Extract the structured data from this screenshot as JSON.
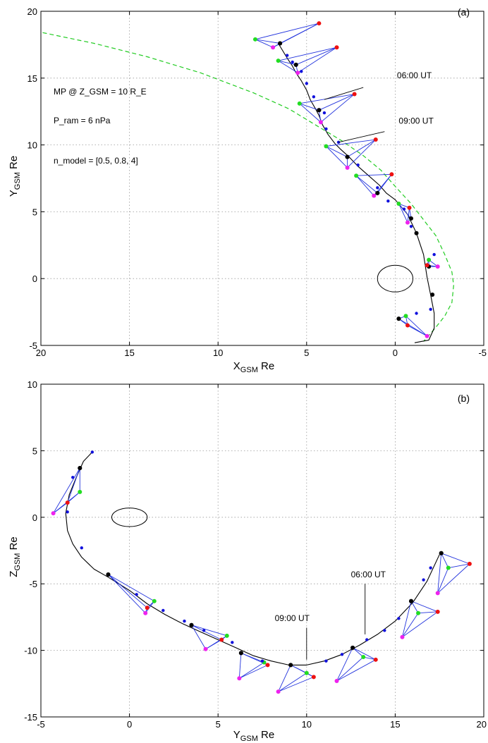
{
  "chart_data": [
    {
      "panel_label": "(a)",
      "type": "scatter",
      "xlabel_main": "X",
      "xlabel_sub": "GSM",
      "xlabel_tail": " Re",
      "ylabel_main": "Y",
      "ylabel_sub": "GSM",
      "ylabel_tail": " Re",
      "xlim": [
        20,
        -5
      ],
      "ylim": [
        -5,
        20
      ],
      "x_ticks": [
        20,
        15,
        10,
        5,
        0,
        -5
      ],
      "x_tick_labels": [
        "20",
        "15",
        "10",
        "5",
        "0",
        "-5"
      ],
      "y_ticks": [
        -5,
        0,
        5,
        10,
        15,
        20
      ],
      "y_tick_labels": [
        "-5",
        "0",
        "5",
        "10",
        "15",
        "20"
      ],
      "grid": true,
      "earth": {
        "x": 0,
        "y": 0,
        "rx": 1,
        "ry": 1
      },
      "magnetopause": {
        "label_lines": [
          "MP @ Z_GSM = 10 R_E",
          "P_ram = 6 nPa",
          "n_model = [0.5, 0.8, 4]"
        ],
        "color": "#22cc22",
        "x": [
          19.9,
          17,
          14,
          11,
          8,
          6,
          4.5,
          3,
          1.8,
          0.8,
          0,
          -0.9,
          -1.6,
          -2.3,
          -2.8,
          -3.2,
          -3.3,
          -3.2,
          -2.8,
          -2.2,
          -1.6
        ],
        "y": [
          18.4,
          17.6,
          16.6,
          15.4,
          13.9,
          12.7,
          11.5,
          10.3,
          9.2,
          8.1,
          6.9,
          5.6,
          4.4,
          3.2,
          1.8,
          0.5,
          -0.5,
          -1.8,
          -2.8,
          -3.8,
          -4.7
        ]
      },
      "trajectory": {
        "color": "#000000",
        "x": [
          -1.1,
          -1.9,
          -2.2,
          -2.2,
          -2.0,
          -1.8,
          -1.6,
          -1.2,
          -0.7,
          0.0,
          0.5,
          0.9,
          1.5,
          2.1,
          2.6,
          3.1,
          3.4,
          3.8,
          4.1,
          4.3,
          4.5,
          4.8,
          5.0,
          5.3,
          5.6,
          5.8,
          6.1,
          6.6
        ],
        "y": [
          -4.8,
          -4.6,
          -3.7,
          -2.6,
          -1.2,
          0.1,
          1.8,
          3.4,
          4.8,
          5.9,
          6.4,
          7.0,
          7.7,
          8.4,
          9.1,
          9.7,
          10.1,
          10.8,
          11.5,
          12.2,
          12.7,
          13.4,
          14.1,
          14.8,
          15.4,
          15.9,
          16.5,
          17.6
        ]
      },
      "orbit_dots": [
        {
          "x": -1.2,
          "y": -2.6
        },
        {
          "x": -2.0,
          "y": -2.3
        },
        {
          "x": -2.2,
          "y": 1.8
        },
        {
          "x": -0.9,
          "y": 3.9
        },
        {
          "x": -0.5,
          "y": 5.2
        },
        {
          "x": 0.4,
          "y": 5.8
        },
        {
          "x": 1.0,
          "y": 6.8
        },
        {
          "x": 2.1,
          "y": 8.5
        },
        {
          "x": 3.2,
          "y": 10.2
        },
        {
          "x": 3.9,
          "y": 11.2
        },
        {
          "x": 4.0,
          "y": 12.4
        },
        {
          "x": 4.6,
          "y": 13.6
        },
        {
          "x": 5.0,
          "y": 14.6
        },
        {
          "x": 5.3,
          "y": 15.5
        },
        {
          "x": 5.8,
          "y": 16.2
        },
        {
          "x": 6.1,
          "y": 16.7
        }
      ],
      "hour_marks": [
        {
          "x": -0.2,
          "y": -3.0
        },
        {
          "x": -2.1,
          "y": -1.2
        },
        {
          "x": -1.2,
          "y": 3.4
        },
        {
          "x": 1.0,
          "y": 6.4
        },
        {
          "x": 2.7,
          "y": 9.1
        },
        {
          "x": 4.3,
          "y": 12.6
        },
        {
          "x": 5.6,
          "y": 16.0
        },
        {
          "x": 6.5,
          "y": 17.6
        }
      ],
      "tetrahedra": [
        {
          "black": [
            -0.2,
            -3.0
          ],
          "red": [
            -0.7,
            -3.5
          ],
          "green": [
            -0.6,
            -2.8
          ],
          "magenta": [
            -1.8,
            -4.3
          ]
        },
        {
          "black": [
            -1.9,
            0.9
          ],
          "red": [
            -1.8,
            1.0
          ],
          "green": [
            -1.9,
            1.4
          ],
          "magenta": [
            -2.4,
            0.9
          ]
        },
        {
          "black": [
            -0.9,
            4.5
          ],
          "red": [
            -0.8,
            5.3
          ],
          "green": [
            -0.2,
            5.6
          ],
          "magenta": [
            -0.7,
            4.2
          ]
        },
        {
          "black": [
            1.0,
            6.4
          ],
          "red": [
            0.2,
            7.8
          ],
          "green": [
            2.2,
            7.7
          ],
          "magenta": [
            1.2,
            6.2
          ]
        },
        {
          "black": [
            2.7,
            9.1
          ],
          "red": [
            1.1,
            10.4
          ],
          "green": [
            3.9,
            9.9
          ],
          "magenta": [
            2.7,
            8.3
          ]
        },
        {
          "black": [
            4.3,
            12.6
          ],
          "red": [
            2.3,
            13.8
          ],
          "green": [
            5.4,
            13.1
          ],
          "magenta": [
            4.2,
            11.7
          ]
        },
        {
          "black": [
            5.6,
            16.0
          ],
          "red": [
            3.3,
            17.3
          ],
          "green": [
            6.6,
            16.3
          ],
          "magenta": [
            5.5,
            15.4
          ]
        },
        {
          "black": [
            6.5,
            17.6
          ],
          "red": [
            4.3,
            19.1
          ],
          "green": [
            7.9,
            17.9
          ],
          "magenta": [
            6.9,
            17.3
          ]
        }
      ],
      "time_labels": [
        {
          "text": "06:00  UT",
          "x": -0.1,
          "y": 15.0,
          "tx": 1.8,
          "ty": 14.3,
          "px": 4.0,
          "py": 13.4
        },
        {
          "text": "09:00  UT",
          "x": -0.2,
          "y": 11.6,
          "tx": 0.6,
          "ty": 11.0,
          "px": 3.2,
          "py": 10.2
        }
      ]
    },
    {
      "panel_label": "(b)",
      "type": "scatter",
      "xlabel_main": "Y",
      "xlabel_sub": "GSM",
      "xlabel_tail": " Re",
      "ylabel_main": "Z",
      "ylabel_sub": "GSM",
      "ylabel_tail": " Re",
      "xlim": [
        -5,
        20
      ],
      "ylim": [
        -15,
        10
      ],
      "x_ticks": [
        -5,
        0,
        5,
        10,
        15,
        20
      ],
      "x_tick_labels": [
        "-5",
        "0",
        "5",
        "10",
        "15",
        "20"
      ],
      "y_ticks": [
        -15,
        -10,
        -5,
        0,
        5,
        10
      ],
      "y_tick_labels": [
        "-15",
        "-10",
        "-5",
        "0",
        "5",
        "10"
      ],
      "grid": true,
      "earth": {
        "x": 0,
        "y": 0,
        "rx": 1,
        "ry": 0.7
      },
      "trajectory": {
        "color": "#000000",
        "x": [
          -2.1,
          -2.6,
          -3.0,
          -3.4,
          -3.6,
          -3.5,
          -3.2,
          -2.7,
          -2.0,
          -1.2,
          0.0,
          1.0,
          2.0,
          3.0,
          4.0,
          5.0,
          6.0,
          7.0,
          8.0,
          9.0,
          10.0,
          11.0,
          12.0,
          13.0,
          14.0,
          15.0,
          16.0,
          16.8,
          17.5
        ],
        "y": [
          4.9,
          4.2,
          3.0,
          1.7,
          0.3,
          -1.0,
          -2.0,
          -3.0,
          -3.9,
          -4.5,
          -5.5,
          -6.5,
          -7.3,
          -8.0,
          -8.6,
          -9.2,
          -9.8,
          -10.4,
          -10.8,
          -11.1,
          -11.1,
          -10.8,
          -10.3,
          -9.6,
          -8.8,
          -7.8,
          -6.4,
          -4.8,
          -2.8
        ]
      },
      "orbit_dots": [
        {
          "x": -2.1,
          "y": 4.9
        },
        {
          "x": -3.2,
          "y": 3.0
        },
        {
          "x": -3.5,
          "y": 0.4
        },
        {
          "x": -2.7,
          "y": -2.3
        },
        {
          "x": 0.4,
          "y": -5.8
        },
        {
          "x": 1.9,
          "y": -7.0
        },
        {
          "x": 3.1,
          "y": -7.8
        },
        {
          "x": 4.2,
          "y": -8.5
        },
        {
          "x": 5.8,
          "y": -9.4
        },
        {
          "x": 7.5,
          "y": -10.8
        },
        {
          "x": 11.1,
          "y": -10.8
        },
        {
          "x": 12.0,
          "y": -10.3
        },
        {
          "x": 13.4,
          "y": -9.2
        },
        {
          "x": 14.4,
          "y": -8.5
        },
        {
          "x": 15.2,
          "y": -7.6
        },
        {
          "x": 16.6,
          "y": -4.7
        },
        {
          "x": 17.0,
          "y": -3.8
        }
      ],
      "hour_marks": [
        {
          "x": -2.8,
          "y": 3.7
        },
        {
          "x": -1.2,
          "y": -4.3
        },
        {
          "x": 3.5,
          "y": -8.1
        },
        {
          "x": 6.3,
          "y": -10.2
        },
        {
          "x": 9.1,
          "y": -11.1
        },
        {
          "x": 12.6,
          "y": -9.8
        },
        {
          "x": 15.9,
          "y": -6.3
        },
        {
          "x": 17.6,
          "y": -2.7
        }
      ],
      "tetrahedra": [
        {
          "black": [
            -2.8,
            3.7
          ],
          "red": [
            -3.5,
            1.1
          ],
          "green": [
            -2.8,
            1.9
          ],
          "magenta": [
            -4.3,
            0.3
          ]
        },
        {
          "black": [
            -1.2,
            -4.3
          ],
          "red": [
            1.0,
            -6.8
          ],
          "green": [
            1.4,
            -6.3
          ],
          "magenta": [
            0.9,
            -7.2
          ]
        },
        {
          "black": [
            3.5,
            -8.1
          ],
          "red": [
            5.2,
            -9.2
          ],
          "green": [
            5.5,
            -8.9
          ],
          "magenta": [
            4.3,
            -9.9
          ]
        },
        {
          "black": [
            6.3,
            -10.2
          ],
          "red": [
            7.8,
            -11.1
          ],
          "green": [
            7.6,
            -10.9
          ],
          "magenta": [
            6.2,
            -12.1
          ]
        },
        {
          "black": [
            9.1,
            -11.1
          ],
          "red": [
            10.4,
            -12.0
          ],
          "green": [
            10.0,
            -11.7
          ],
          "magenta": [
            8.4,
            -13.1
          ]
        },
        {
          "black": [
            12.6,
            -9.8
          ],
          "red": [
            13.9,
            -10.7
          ],
          "green": [
            13.2,
            -10.5
          ],
          "magenta": [
            11.7,
            -12.3
          ]
        },
        {
          "black": [
            15.9,
            -6.3
          ],
          "red": [
            17.4,
            -7.1
          ],
          "green": [
            16.3,
            -7.2
          ],
          "magenta": [
            15.4,
            -9.0
          ]
        },
        {
          "black": [
            17.6,
            -2.7
          ],
          "red": [
            19.2,
            -3.5
          ],
          "green": [
            18.0,
            -3.8
          ],
          "magenta": [
            17.4,
            -5.7
          ]
        }
      ],
      "time_labels": [
        {
          "text": "09:00 UT",
          "x": 8.2,
          "y": -7.8,
          "tx": 10.0,
          "ty": -8.3,
          "px": 10.0,
          "py": -10.7
        },
        {
          "text": "06:00 UT",
          "x": 12.5,
          "y": -4.5,
          "tx": 13.3,
          "ty": -5.0,
          "px": 13.3,
          "py": -8.8
        }
      ]
    }
  ]
}
